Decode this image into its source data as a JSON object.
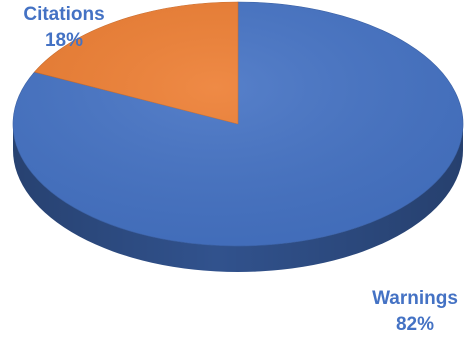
{
  "chart_data": {
    "type": "pie",
    "style": "3d",
    "categories": [
      "Warnings",
      "Citations"
    ],
    "values": [
      82,
      18
    ],
    "value_suffix": "%",
    "legend": "none",
    "data_labels": "category name and percentage, outside slices",
    "colors": {
      "Warnings": "#4472C4",
      "Citations": "#ED7D31",
      "label_text": "#4472C4"
    }
  }
}
